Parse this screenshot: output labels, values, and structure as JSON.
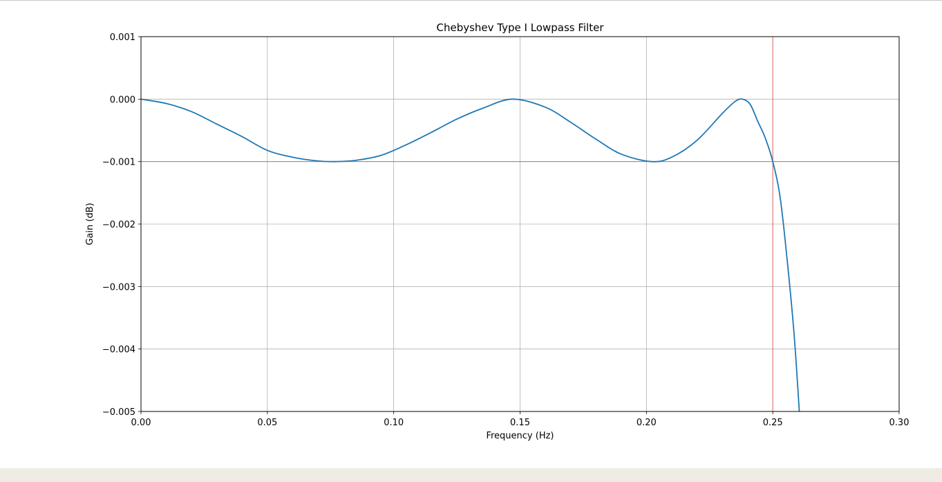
{
  "chart_data": {
    "type": "line",
    "title": "Chebyshev Type I Lowpass Filter",
    "xlabel": "Frequency (Hz)",
    "ylabel": "Gain (dB)",
    "xlim": [
      0.0,
      0.3
    ],
    "ylim": [
      -0.005,
      0.001
    ],
    "grid": true,
    "xticks": [
      0.0,
      0.05,
      0.1,
      0.15,
      0.2,
      0.25,
      0.3
    ],
    "xtick_labels": [
      "0.00",
      "0.05",
      "0.10",
      "0.15",
      "0.20",
      "0.25",
      "0.30"
    ],
    "yticks": [
      0.001,
      0.0,
      -0.001,
      -0.002,
      -0.003,
      -0.004,
      -0.005
    ],
    "ytick_labels": [
      "0.001",
      "0.000",
      "−0.001",
      "−0.002",
      "−0.003",
      "−0.004",
      "−0.005"
    ],
    "reference_lines": [
      {
        "orientation": "horizontal",
        "value": -0.001,
        "color": "#e06666"
      },
      {
        "orientation": "vertical",
        "value": 0.25,
        "color": "#e06666"
      }
    ],
    "series": [
      {
        "color": "#1f77b4",
        "x": [
          0.0,
          0.01,
          0.02,
          0.03,
          0.04,
          0.05,
          0.06,
          0.07,
          0.077,
          0.085,
          0.095,
          0.105,
          0.115,
          0.125,
          0.135,
          0.147,
          0.16,
          0.17,
          0.18,
          0.19,
          0.202,
          0.21,
          0.22,
          0.23,
          0.235,
          0.238,
          0.241,
          0.244,
          0.247,
          0.25,
          0.253,
          0.256,
          0.2585,
          0.2605
        ],
        "y": [
          0.0,
          -7e-05,
          -0.0002,
          -0.0004,
          -0.0006,
          -0.00082,
          -0.00093,
          -0.00099,
          -0.001,
          -0.00098,
          -0.0009,
          -0.00073,
          -0.00053,
          -0.00032,
          -0.00015,
          0.0,
          -0.00013,
          -0.00037,
          -0.00064,
          -0.00088,
          -0.001,
          -0.00093,
          -0.00066,
          -0.00023,
          -4e-05,
          0.0,
          -8e-05,
          -0.00035,
          -0.00062,
          -0.001,
          -0.0016,
          -0.0027,
          -0.0038,
          -0.005
        ]
      }
    ]
  }
}
